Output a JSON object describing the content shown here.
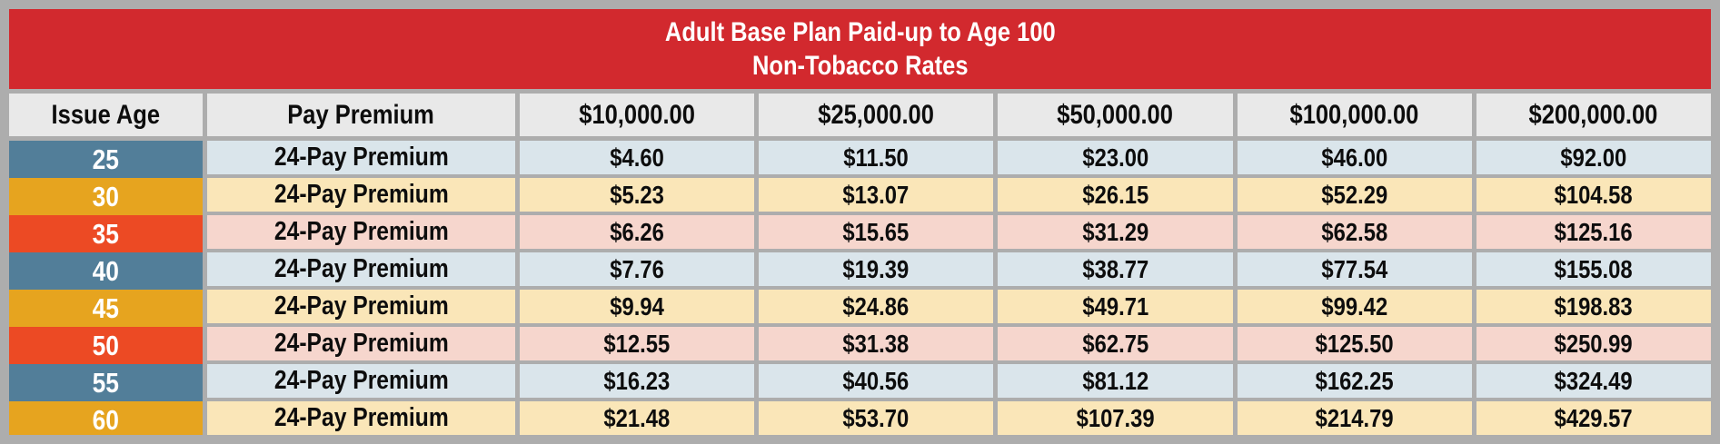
{
  "banner": {
    "line1": "Adult Base Plan Paid-up to Age 100",
    "line2": "Non-Tobacco Rates"
  },
  "table": {
    "columns": [
      "Issue Age",
      "Pay Premium",
      "$10,000.00",
      "$25,000.00",
      "$50,000.00",
      "$100,000.00",
      "$200,000.00"
    ],
    "rows": [
      {
        "age": "25",
        "premium_label": "24-Pay Premium",
        "theme": "blue",
        "values": [
          "$4.60",
          "$11.50",
          "$23.00",
          "$46.00",
          "$92.00"
        ]
      },
      {
        "age": "30",
        "premium_label": "24-Pay Premium",
        "theme": "gold",
        "values": [
          "$5.23",
          "$13.07",
          "$26.15",
          "$52.29",
          "$104.58"
        ]
      },
      {
        "age": "35",
        "premium_label": "24-Pay Premium",
        "theme": "red",
        "values": [
          "$6.26",
          "$15.65",
          "$31.29",
          "$62.58",
          "$125.16"
        ]
      },
      {
        "age": "40",
        "premium_label": "24-Pay Premium",
        "theme": "blue",
        "values": [
          "$7.76",
          "$19.39",
          "$38.77",
          "$77.54",
          "$155.08"
        ]
      },
      {
        "age": "45",
        "premium_label": "24-Pay Premium",
        "theme": "gold",
        "values": [
          "$9.94",
          "$24.86",
          "$49.71",
          "$99.42",
          "$198.83"
        ]
      },
      {
        "age": "50",
        "premium_label": "24-Pay Premium",
        "theme": "red",
        "values": [
          "$12.55",
          "$31.38",
          "$62.75",
          "$125.50",
          "$250.99"
        ]
      },
      {
        "age": "55",
        "premium_label": "24-Pay Premium",
        "theme": "blue",
        "values": [
          "$16.23",
          "$40.56",
          "$81.12",
          "$162.25",
          "$324.49"
        ]
      },
      {
        "age": "60",
        "premium_label": "24-Pay Premium",
        "theme": "gold",
        "values": [
          "$21.48",
          "$53.70",
          "$107.39",
          "$214.79",
          "$429.57"
        ]
      }
    ]
  },
  "colors": {
    "frame-gray": "#adadad",
    "banner-red": "#d2292e",
    "banner-text": "#ffffff",
    "header-cell": "#e9e9e9",
    "age-blue": "#527e99",
    "age-gold": "#e6a41f",
    "age-red": "#ec4a24",
    "row-blue": "#dae5eb",
    "row-gold": "#fae6b8",
    "row-red": "#f6d6cd",
    "text": "#0d0d0d"
  },
  "chart_data": {
    "type": "table",
    "title": "Adult Base Plan Paid-up to Age 100",
    "subtitle": "Non-Tobacco Rates",
    "columns": [
      "Issue Age",
      "Pay Premium",
      "$10,000.00",
      "$25,000.00",
      "$50,000.00",
      "$100,000.00",
      "$200,000.00"
    ],
    "rows": [
      [
        "25",
        "24-Pay Premium",
        4.6,
        11.5,
        23.0,
        46.0,
        92.0
      ],
      [
        "30",
        "24-Pay Premium",
        5.23,
        13.07,
        26.15,
        52.29,
        104.58
      ],
      [
        "35",
        "24-Pay Premium",
        6.26,
        15.65,
        31.29,
        62.58,
        125.16
      ],
      [
        "40",
        "24-Pay Premium",
        7.76,
        19.39,
        38.77,
        77.54,
        155.08
      ],
      [
        "45",
        "24-Pay Premium",
        9.94,
        24.86,
        49.71,
        99.42,
        198.83
      ],
      [
        "50",
        "24-Pay Premium",
        12.55,
        31.38,
        62.75,
        125.5,
        250.99
      ],
      [
        "55",
        "24-Pay Premium",
        16.23,
        40.56,
        81.12,
        162.25,
        324.49
      ],
      [
        "60",
        "24-Pay Premium",
        21.48,
        53.7,
        107.39,
        214.79,
        429.57
      ]
    ]
  }
}
